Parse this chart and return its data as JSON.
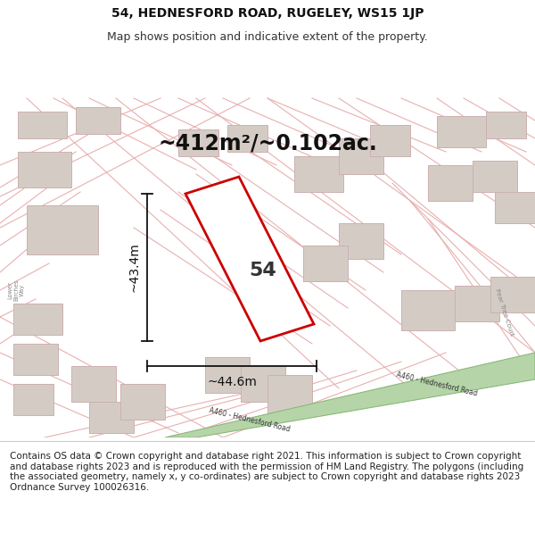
{
  "title": "54, HEDNESFORD ROAD, RUGELEY, WS15 1JP",
  "subtitle": "Map shows position and indicative extent of the property.",
  "area_label": "~412m²/~0.102ac.",
  "property_number": "54",
  "dim_width": "~44.6m",
  "dim_height": "~43.4m",
  "footer": "Contains OS data © Crown copyright and database right 2021. This information is subject to Crown copyright and database rights 2023 and is reproduced with the permission of HM Land Registry. The polygons (including the associated geometry, namely x, y co-ordinates) are subject to Crown copyright and database rights 2023 Ordnance Survey 100026316.",
  "map_bg": "#f2f0ed",
  "property_outline_color": "#cc0000",
  "green_road_fill": "#b5d5a8",
  "green_road_edge": "#8ab87a",
  "road_line_color": "#e8b0b0",
  "building_fill": "#d4ccc4",
  "building_edge": "#cdb0b0",
  "dim_color": "#111111",
  "text_color": "#222222",
  "label_color": "#777777",
  "title_size": 10,
  "subtitle_size": 9,
  "area_fontsize": 18,
  "prop_num_fontsize": 18,
  "dim_fontsize": 10,
  "footer_fontsize": 7.5
}
